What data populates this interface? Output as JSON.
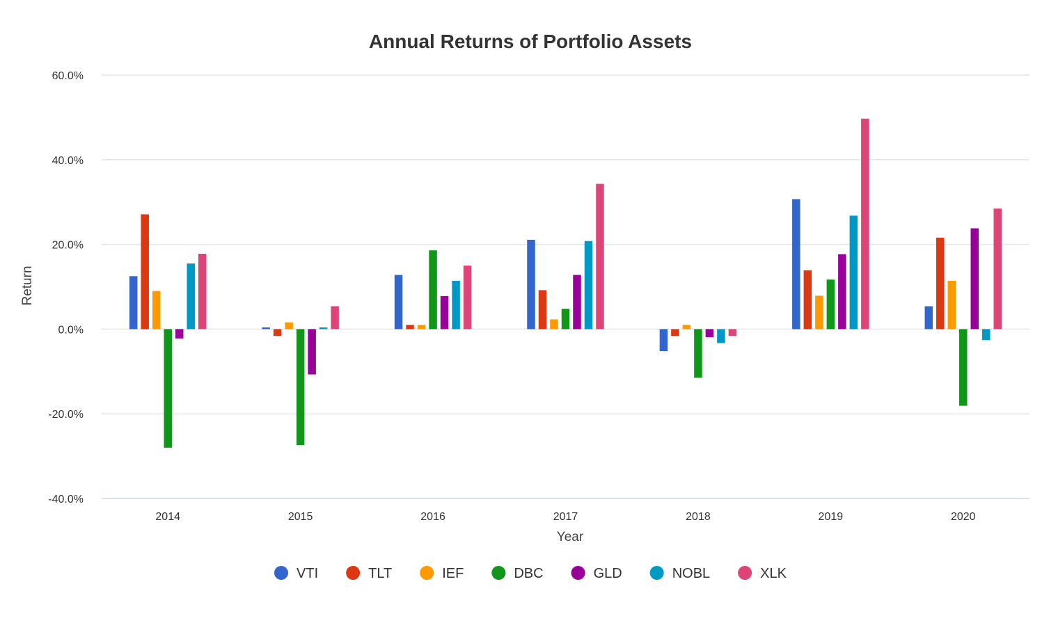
{
  "chart_data": {
    "type": "bar",
    "title": "Annual Returns of Portfolio Assets",
    "xlabel": "Year",
    "ylabel": "Return",
    "categories": [
      "2014",
      "2015",
      "2016",
      "2017",
      "2018",
      "2019",
      "2020"
    ],
    "ylim": [
      -40,
      60
    ],
    "yticks": [
      -40,
      -20,
      0,
      20,
      40,
      60
    ],
    "ytick_labels": [
      "-40.0%",
      "-20.0%",
      "0.0%",
      "20.0%",
      "40.0%",
      "60.0%"
    ],
    "grid": true,
    "legend_position": "bottom-center",
    "series": [
      {
        "name": "VTI",
        "color": "#3366cc",
        "values": [
          12.5,
          0.4,
          12.8,
          21.1,
          -5.2,
          30.7,
          5.4
        ]
      },
      {
        "name": "TLT",
        "color": "#dc3912",
        "values": [
          27.1,
          -1.6,
          1.0,
          9.2,
          -1.6,
          13.9,
          21.6
        ]
      },
      {
        "name": "IEF",
        "color": "#ff9900",
        "values": [
          9.0,
          1.6,
          1.0,
          2.3,
          1.0,
          7.9,
          11.4
        ]
      },
      {
        "name": "DBC",
        "color": "#109618",
        "values": [
          -28.0,
          -27.4,
          18.6,
          4.8,
          -11.5,
          11.7,
          -18.1
        ]
      },
      {
        "name": "GLD",
        "color": "#990099",
        "values": [
          -2.2,
          -10.7,
          7.8,
          12.8,
          -1.9,
          17.7,
          23.8
        ]
      },
      {
        "name": "NOBL",
        "color": "#0099c6",
        "values": [
          15.5,
          0.4,
          11.4,
          20.8,
          -3.3,
          26.8,
          -2.6
        ]
      },
      {
        "name": "XLK",
        "color": "#dd4477",
        "values": [
          17.8,
          5.4,
          15.0,
          34.3,
          -1.6,
          49.7,
          28.5
        ]
      }
    ]
  }
}
